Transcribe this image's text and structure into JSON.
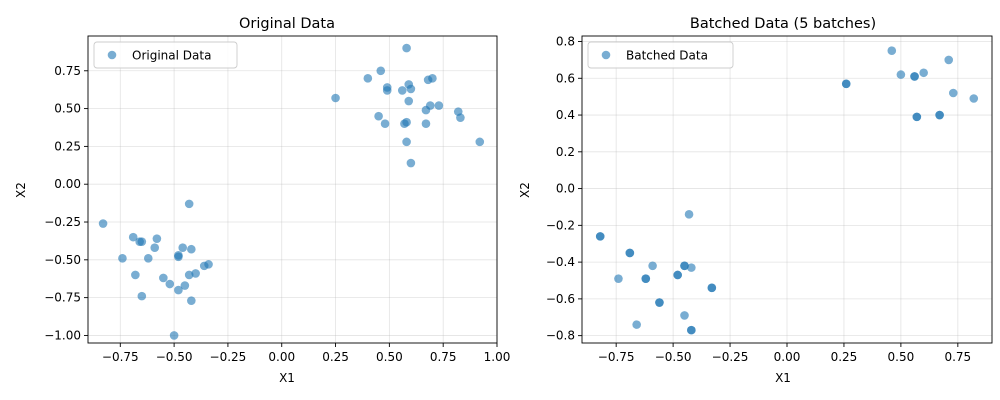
{
  "chart_data": [
    {
      "type": "scatter",
      "title": "Original Data",
      "xlabel": "X1",
      "ylabel": "X2",
      "xlim": [
        -0.9,
        1.0
      ],
      "ylim": [
        -1.05,
        0.98
      ],
      "xticks": [
        -0.75,
        -0.5,
        -0.25,
        0.0,
        0.25,
        0.5,
        0.75,
        1.0
      ],
      "xtick_labels": [
        "−0.75",
        "−0.50",
        "−0.25",
        "0.00",
        "0.25",
        "0.50",
        "0.75",
        "1.00"
      ],
      "yticks": [
        -1.0,
        -0.75,
        -0.5,
        -0.25,
        0.0,
        0.25,
        0.5,
        0.75
      ],
      "ytick_labels": [
        "−1.00",
        "−0.75",
        "−0.50",
        "−0.25",
        "0.00",
        "0.25",
        "0.50",
        "0.75"
      ],
      "grid": true,
      "legend": {
        "placement": "top-left",
        "label": "Original Data"
      },
      "color": "#1f77b4",
      "series": [
        {
          "name": "Original Data",
          "points": [
            [
              0.25,
              0.57
            ],
            [
              0.4,
              0.7
            ],
            [
              0.46,
              0.75
            ],
            [
              0.49,
              0.64
            ],
            [
              0.49,
              0.62
            ],
            [
              0.45,
              0.45
            ],
            [
              0.48,
              0.4
            ],
            [
              0.56,
              0.62
            ],
            [
              0.57,
              0.4
            ],
            [
              0.58,
              0.41
            ],
            [
              0.58,
              0.28
            ],
            [
              0.58,
              0.9
            ],
            [
              0.59,
              0.66
            ],
            [
              0.6,
              0.63
            ],
            [
              0.59,
              0.55
            ],
            [
              0.6,
              0.14
            ],
            [
              0.67,
              0.49
            ],
            [
              0.68,
              0.69
            ],
            [
              0.7,
              0.7
            ],
            [
              0.67,
              0.4
            ],
            [
              0.69,
              0.52
            ],
            [
              0.73,
              0.52
            ],
            [
              0.82,
              0.48
            ],
            [
              0.83,
              0.44
            ],
            [
              0.92,
              0.28
            ],
            [
              -0.83,
              -0.26
            ],
            [
              -0.74,
              -0.49
            ],
            [
              -0.69,
              -0.35
            ],
            [
              -0.68,
              -0.6
            ],
            [
              -0.66,
              -0.38
            ],
            [
              -0.65,
              -0.38
            ],
            [
              -0.65,
              -0.74
            ],
            [
              -0.62,
              -0.49
            ],
            [
              -0.59,
              -0.42
            ],
            [
              -0.58,
              -0.36
            ],
            [
              -0.55,
              -0.62
            ],
            [
              -0.52,
              -0.66
            ],
            [
              -0.5,
              -1.0
            ],
            [
              -0.48,
              -0.47
            ],
            [
              -0.48,
              -0.48
            ],
            [
              -0.48,
              -0.7
            ],
            [
              -0.46,
              -0.42
            ],
            [
              -0.45,
              -0.67
            ],
            [
              -0.43,
              -0.13
            ],
            [
              -0.43,
              -0.6
            ],
            [
              -0.42,
              -0.77
            ],
            [
              -0.42,
              -0.43
            ],
            [
              -0.4,
              -0.59
            ],
            [
              -0.36,
              -0.54
            ],
            [
              -0.34,
              -0.53
            ]
          ]
        }
      ]
    },
    {
      "type": "scatter",
      "title": "Batched Data (5 batches)",
      "xlabel": "X1",
      "ylabel": "X2",
      "xlim": [
        -0.9,
        0.9
      ],
      "ylim": [
        -0.84,
        0.83
      ],
      "xticks": [
        -0.75,
        -0.5,
        -0.25,
        0.0,
        0.25,
        0.5,
        0.75
      ],
      "xtick_labels": [
        "−0.75",
        "−0.50",
        "−0.25",
        "0.00",
        "0.25",
        "0.50",
        "0.75"
      ],
      "yticks": [
        -0.8,
        -0.6,
        -0.4,
        -0.2,
        0.0,
        0.2,
        0.4,
        0.6,
        0.8
      ],
      "ytick_labels": [
        "−0.8",
        "−0.6",
        "−0.4",
        "−0.2",
        "0.0",
        "0.2",
        "0.4",
        "0.6",
        "0.8"
      ],
      "grid": true,
      "legend": {
        "placement": "top-left",
        "label": "Batched Data"
      },
      "color": "#1f77b4",
      "series": [
        {
          "name": "Batched Data",
          "points": [
            [
              0.26,
              0.57
            ],
            [
              0.26,
              0.57
            ],
            [
              0.46,
              0.75
            ],
            [
              0.5,
              0.62
            ],
            [
              0.56,
              0.61
            ],
            [
              0.56,
              0.61
            ],
            [
              0.6,
              0.63
            ],
            [
              0.57,
              0.39
            ],
            [
              0.57,
              0.39
            ],
            [
              0.67,
              0.4
            ],
            [
              0.67,
              0.4
            ],
            [
              0.71,
              0.7
            ],
            [
              0.73,
              0.52
            ],
            [
              0.82,
              0.49
            ],
            [
              -0.82,
              -0.26
            ],
            [
              -0.82,
              -0.26
            ],
            [
              -0.74,
              -0.49
            ],
            [
              -0.69,
              -0.35
            ],
            [
              -0.69,
              -0.35
            ],
            [
              -0.66,
              -0.74
            ],
            [
              -0.62,
              -0.49
            ],
            [
              -0.62,
              -0.49
            ],
            [
              -0.59,
              -0.42
            ],
            [
              -0.56,
              -0.62
            ],
            [
              -0.56,
              -0.62
            ],
            [
              -0.48,
              -0.47
            ],
            [
              -0.48,
              -0.47
            ],
            [
              -0.45,
              -0.42
            ],
            [
              -0.45,
              -0.42
            ],
            [
              -0.45,
              -0.69
            ],
            [
              -0.43,
              -0.14
            ],
            [
              -0.42,
              -0.43
            ],
            [
              -0.42,
              -0.77
            ],
            [
              -0.42,
              -0.77
            ],
            [
              -0.33,
              -0.54
            ],
            [
              -0.33,
              -0.54
            ]
          ]
        }
      ]
    }
  ]
}
